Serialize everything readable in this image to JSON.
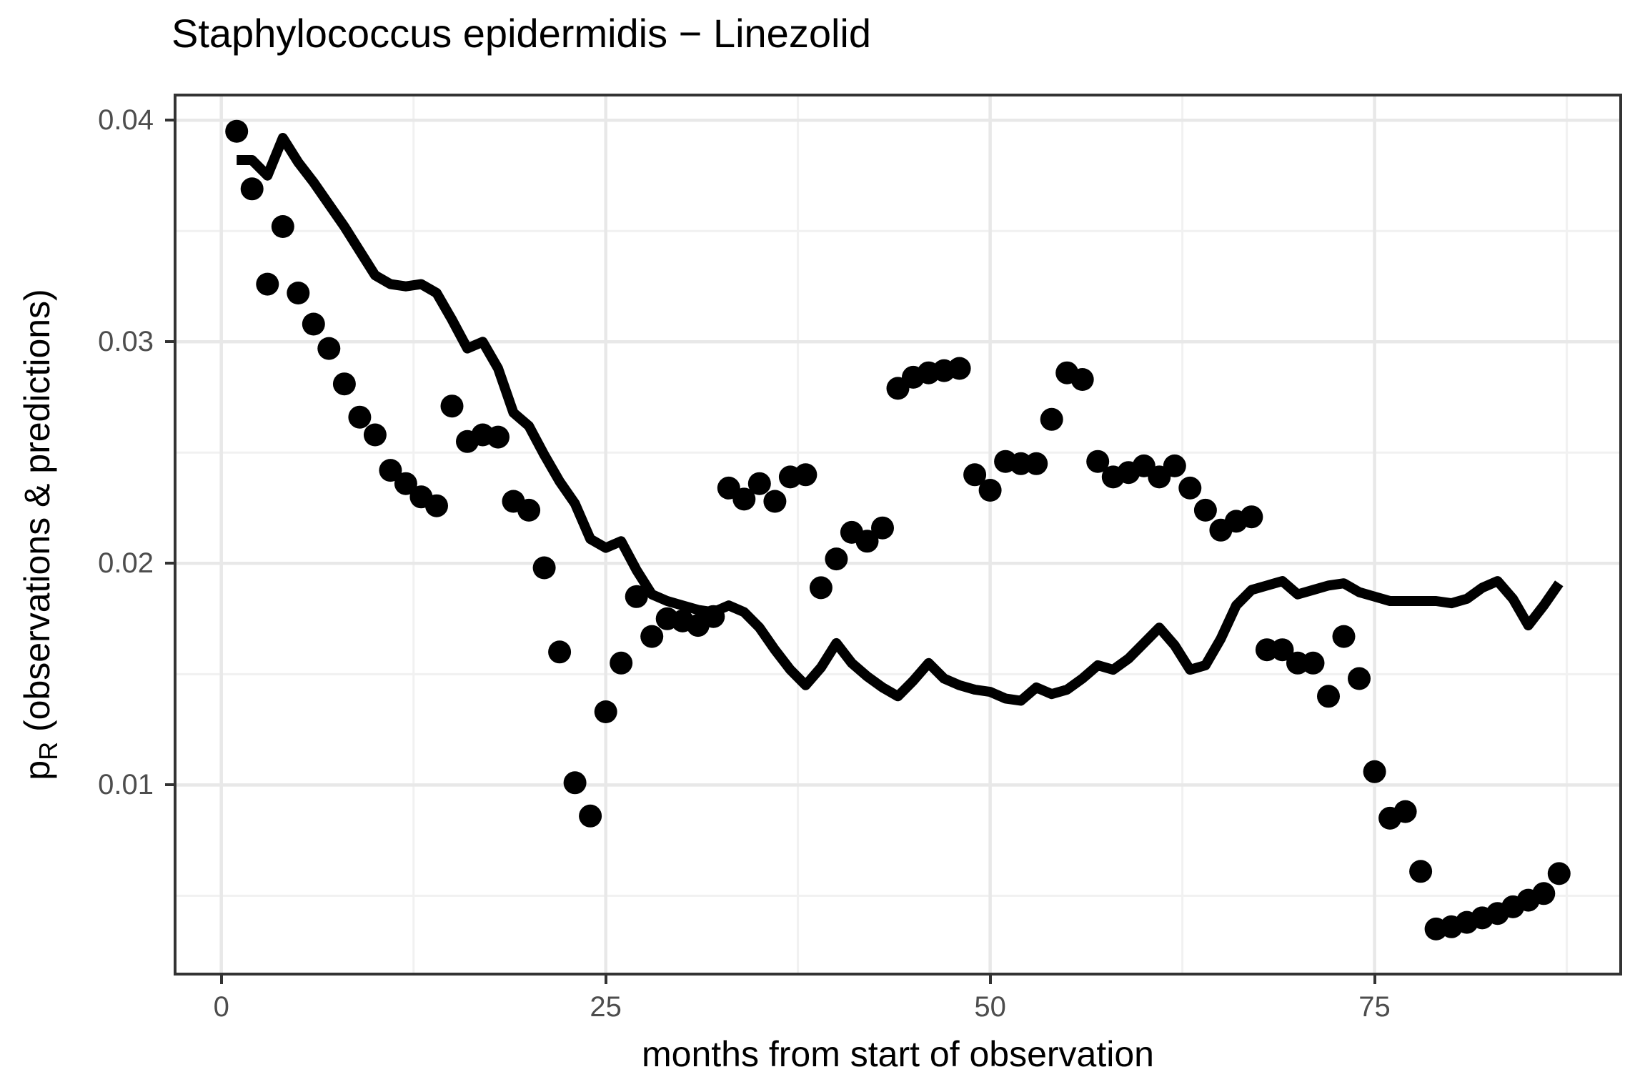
{
  "chart_data": {
    "type": "line+scatter",
    "title": "Staphylococcus epidermidis − Linezolid",
    "xlabel": "months from start of observation",
    "ylabel": {
      "main": "p",
      "sub": "R",
      "rest": " (observations & predictions)"
    },
    "xlim": [
      -3.1,
      91.1
    ],
    "ylim": [
      0.0014,
      0.0412
    ],
    "grid": true,
    "legend_position": "none",
    "x_ticks": {
      "major": [
        0,
        25,
        50,
        75
      ],
      "labels": [
        "0",
        "25",
        "50",
        "75"
      ],
      "minor": [
        12.5,
        37.5,
        62.5,
        87.5
      ]
    },
    "y_ticks": {
      "major": [
        0.01,
        0.02,
        0.03,
        0.04
      ],
      "labels": [
        "0.01",
        "0.02",
        "0.03",
        "0.04"
      ],
      "minor": [
        0.005,
        0.015,
        0.025,
        0.035
      ]
    },
    "colors": {
      "data": "#000000",
      "grid_major": "#E8E8E8",
      "grid_minor": "#F1F1F1",
      "panel_border": "#333333",
      "tick_label": "#4D4D4D",
      "text": "#000000"
    },
    "style": {
      "point_radius": 16,
      "line_width": 14
    },
    "series": [
      {
        "name": "observations",
        "type": "scatter",
        "points": [
          [
            1,
            0.0395
          ],
          [
            2,
            0.0369
          ],
          [
            3,
            0.0326
          ],
          [
            4,
            0.0352
          ],
          [
            5,
            0.0322
          ],
          [
            6,
            0.0308
          ],
          [
            7,
            0.0297
          ],
          [
            8,
            0.0281
          ],
          [
            9,
            0.0266
          ],
          [
            10,
            0.0258
          ],
          [
            11,
            0.0242
          ],
          [
            12,
            0.0236
          ],
          [
            13,
            0.023
          ],
          [
            14,
            0.0226
          ],
          [
            15,
            0.0271
          ],
          [
            16,
            0.0255
          ],
          [
            17,
            0.0258
          ],
          [
            18,
            0.0257
          ],
          [
            19,
            0.0228
          ],
          [
            20,
            0.0224
          ],
          [
            21,
            0.0198
          ],
          [
            22,
            0.016
          ],
          [
            23,
            0.0101
          ],
          [
            24,
            0.0086
          ],
          [
            25,
            0.0133
          ],
          [
            26,
            0.0155
          ],
          [
            27,
            0.0185
          ],
          [
            28,
            0.0167
          ],
          [
            29,
            0.0175
          ],
          [
            30,
            0.0174
          ],
          [
            31,
            0.0172
          ],
          [
            32,
            0.0176
          ],
          [
            33,
            0.0234
          ],
          [
            34,
            0.0229
          ],
          [
            35,
            0.0236
          ],
          [
            36,
            0.0228
          ],
          [
            37,
            0.0239
          ],
          [
            38,
            0.024
          ],
          [
            39,
            0.0189
          ],
          [
            40,
            0.0202
          ],
          [
            41,
            0.0214
          ],
          [
            42,
            0.021
          ],
          [
            43,
            0.0216
          ],
          [
            44,
            0.0279
          ],
          [
            45,
            0.0284
          ],
          [
            46,
            0.0286
          ],
          [
            47,
            0.0287
          ],
          [
            48,
            0.0288
          ],
          [
            49,
            0.024
          ],
          [
            50,
            0.0233
          ],
          [
            51,
            0.0246
          ],
          [
            52,
            0.0245
          ],
          [
            53,
            0.0245
          ],
          [
            54,
            0.0265
          ],
          [
            55,
            0.0286
          ],
          [
            56,
            0.0283
          ],
          [
            57,
            0.0246
          ],
          [
            58,
            0.0239
          ],
          [
            59,
            0.0241
          ],
          [
            60,
            0.0244
          ],
          [
            61,
            0.0239
          ],
          [
            62,
            0.0244
          ],
          [
            63,
            0.0234
          ],
          [
            64,
            0.0224
          ],
          [
            65,
            0.0215
          ],
          [
            66,
            0.0219
          ],
          [
            67,
            0.0221
          ],
          [
            68,
            0.0161
          ],
          [
            69,
            0.0161
          ],
          [
            70,
            0.0155
          ],
          [
            71,
            0.0155
          ],
          [
            72,
            0.014
          ],
          [
            73,
            0.0167
          ],
          [
            74,
            0.0148
          ],
          [
            75,
            0.0106
          ],
          [
            76,
            0.0085
          ],
          [
            77,
            0.0088
          ],
          [
            78,
            0.0061
          ],
          [
            79,
            0.0035
          ],
          [
            80,
            0.0036
          ],
          [
            81,
            0.0038
          ],
          [
            82,
            0.004
          ],
          [
            83,
            0.0042
          ],
          [
            84,
            0.0045
          ],
          [
            85,
            0.0048
          ],
          [
            86,
            0.0051
          ],
          [
            87,
            0.006
          ]
        ]
      },
      {
        "name": "predictions",
        "type": "line",
        "points": [
          [
            1,
            0.0382
          ],
          [
            2,
            0.0382
          ],
          [
            3,
            0.0375
          ],
          [
            4,
            0.0392
          ],
          [
            5,
            0.0381
          ],
          [
            6,
            0.0372
          ],
          [
            7,
            0.0362
          ],
          [
            8,
            0.0352
          ],
          [
            9,
            0.0341
          ],
          [
            10,
            0.033
          ],
          [
            11,
            0.0326
          ],
          [
            12,
            0.0325
          ],
          [
            13,
            0.0326
          ],
          [
            14,
            0.0322
          ],
          [
            15,
            0.031
          ],
          [
            16,
            0.0297
          ],
          [
            17,
            0.03
          ],
          [
            18,
            0.0288
          ],
          [
            19,
            0.0268
          ],
          [
            20,
            0.0262
          ],
          [
            21,
            0.0249
          ],
          [
            22,
            0.0237
          ],
          [
            23,
            0.0227
          ],
          [
            24,
            0.0211
          ],
          [
            25,
            0.0207
          ],
          [
            26,
            0.021
          ],
          [
            27,
            0.0197
          ],
          [
            28,
            0.0186
          ],
          [
            29,
            0.0183
          ],
          [
            30,
            0.0181
          ],
          [
            31,
            0.0179
          ],
          [
            32,
            0.0178
          ],
          [
            33,
            0.0181
          ],
          [
            34,
            0.0178
          ],
          [
            35,
            0.0171
          ],
          [
            36,
            0.0161
          ],
          [
            37,
            0.0152
          ],
          [
            38,
            0.0145
          ],
          [
            39,
            0.0153
          ],
          [
            40,
            0.0164
          ],
          [
            41,
            0.0155
          ],
          [
            42,
            0.0149
          ],
          [
            43,
            0.0144
          ],
          [
            44,
            0.014
          ],
          [
            45,
            0.0147
          ],
          [
            46,
            0.0155
          ],
          [
            47,
            0.0148
          ],
          [
            48,
            0.0145
          ],
          [
            49,
            0.0143
          ],
          [
            50,
            0.0142
          ],
          [
            51,
            0.0139
          ],
          [
            52,
            0.0138
          ],
          [
            53,
            0.0144
          ],
          [
            54,
            0.0141
          ],
          [
            55,
            0.0143
          ],
          [
            56,
            0.0148
          ],
          [
            57,
            0.0154
          ],
          [
            58,
            0.0152
          ],
          [
            59,
            0.0157
          ],
          [
            60,
            0.0164
          ],
          [
            61,
            0.0171
          ],
          [
            62,
            0.0163
          ],
          [
            63,
            0.0152
          ],
          [
            64,
            0.0154
          ],
          [
            65,
            0.0166
          ],
          [
            66,
            0.0181
          ],
          [
            67,
            0.0188
          ],
          [
            68,
            0.019
          ],
          [
            69,
            0.0192
          ],
          [
            70,
            0.0186
          ],
          [
            71,
            0.0188
          ],
          [
            72,
            0.019
          ],
          [
            73,
            0.0191
          ],
          [
            74,
            0.0187
          ],
          [
            75,
            0.0185
          ],
          [
            76,
            0.0183
          ],
          [
            77,
            0.0183
          ],
          [
            78,
            0.0183
          ],
          [
            79,
            0.0183
          ],
          [
            80,
            0.0182
          ],
          [
            81,
            0.0184
          ],
          [
            82,
            0.0189
          ],
          [
            83,
            0.0192
          ],
          [
            84,
            0.0184
          ],
          [
            85,
            0.0172
          ],
          [
            86,
            0.0181
          ],
          [
            87,
            0.0191
          ]
        ]
      }
    ]
  }
}
